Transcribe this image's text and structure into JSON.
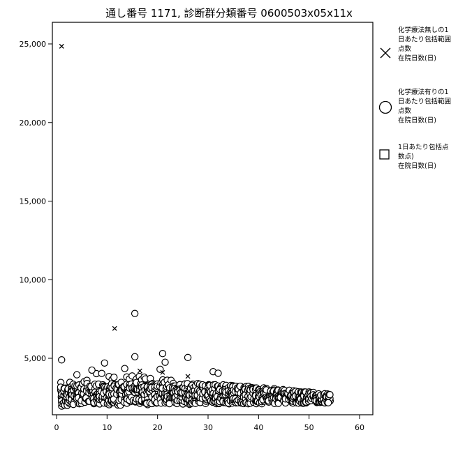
{
  "chart_data": {
    "type": "scatter",
    "title": "通し番号 1171, 診断群分類番号 0600503x05x11x",
    "xlabel": "",
    "ylabel": "",
    "xlim": [
      0,
      65
    ],
    "ylim": [
      -3500,
      26500
    ],
    "x_ticks": [
      0,
      10,
      20,
      30,
      40,
      50,
      60
    ],
    "x_tick_labels": [
      "0",
      "10",
      "20",
      "30",
      "40",
      "50",
      "60"
    ],
    "y_ticks": [
      5000,
      10000,
      15000,
      20000,
      25000
    ],
    "y_tick_labels": [
      "5,000",
      "10,000",
      "15,000",
      "20,000",
      "25,000"
    ],
    "grid": false,
    "legend_position": "right",
    "legend": [
      {
        "marker": "cross",
        "lines": [
          "化学療法無しの1",
          "日あたり包括範囲",
          "点数",
          "在院日数(日)"
        ]
      },
      {
        "marker": "circle",
        "lines": [
          "化学療法有りの1",
          "日あたり包括範囲",
          "点数",
          "在院日数(日)"
        ]
      },
      {
        "marker": "square",
        "lines": [
          "1日あたり包括点",
          "数点)",
          "在院日数(日)"
        ]
      }
    ],
    "series": [
      {
        "marker": "cross",
        "points": [
          [
            1,
            24850
          ],
          [
            11.5,
            6900
          ],
          [
            16.5,
            4200
          ],
          [
            21,
            4100
          ],
          [
            26,
            3850
          ]
        ]
      },
      {
        "marker": "circle",
        "points": [
          [
            15.5,
            7850
          ],
          [
            21,
            5300
          ],
          [
            15.5,
            5100
          ],
          [
            26,
            5050
          ],
          [
            21.5,
            4750
          ],
          [
            9.5,
            4700
          ],
          [
            1,
            4900
          ],
          [
            13.5,
            4350
          ],
          [
            20.5,
            4300
          ],
          [
            7,
            4250
          ],
          [
            31,
            4150
          ],
          [
            32,
            4050
          ]
        ],
        "band": {
          "x_start": 1,
          "x_end": 54,
          "x_step": 0.5,
          "upper_start": 4300,
          "upper_end": 2750,
          "lower_start": 1950,
          "lower_end": 2150,
          "dense_value_min": 2100,
          "dense_value_max": 3400
        }
      },
      {
        "marker": "square",
        "points": []
      }
    ]
  }
}
